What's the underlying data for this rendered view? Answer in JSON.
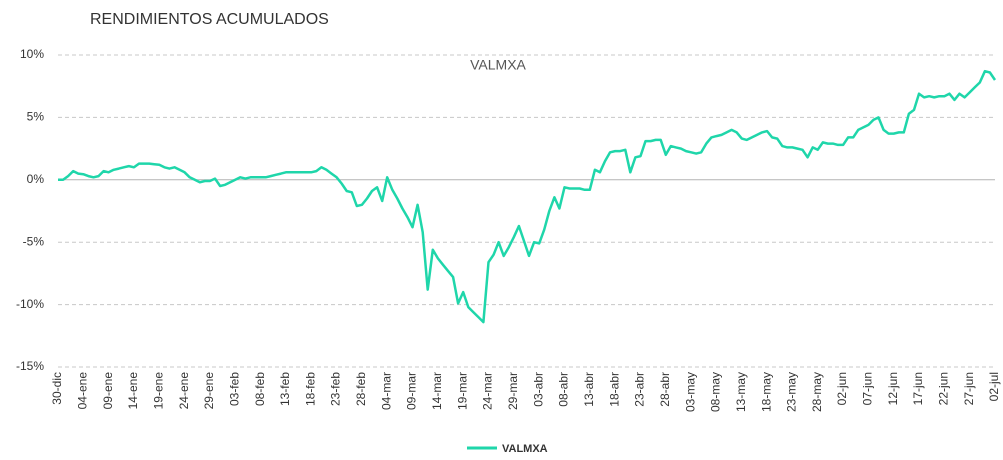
{
  "chart_data": {
    "type": "line",
    "title": "RENDIMIENTOS ACUMULADOS",
    "annotation": "VALMXA",
    "categories": [
      "30-dic",
      null,
      null,
      null,
      null,
      "04-ene",
      null,
      null,
      null,
      null,
      "09-ene",
      null,
      null,
      null,
      null,
      "14-ene",
      null,
      null,
      null,
      null,
      "19-ene",
      null,
      null,
      null,
      null,
      "24-ene",
      null,
      null,
      null,
      null,
      "29-ene",
      null,
      null,
      null,
      null,
      "03-feb",
      null,
      null,
      null,
      null,
      "08-feb",
      null,
      null,
      null,
      null,
      "13-feb",
      null,
      null,
      null,
      null,
      "18-feb",
      null,
      null,
      null,
      null,
      "23-feb",
      null,
      null,
      null,
      null,
      "28-feb",
      null,
      null,
      null,
      null,
      "04-mar",
      null,
      null,
      null,
      null,
      "09-mar",
      null,
      null,
      null,
      null,
      "14-mar",
      null,
      null,
      null,
      null,
      "19-mar",
      null,
      null,
      null,
      null,
      "24-mar",
      null,
      null,
      null,
      null,
      "29-mar",
      null,
      null,
      null,
      null,
      "03-abr",
      null,
      null,
      null,
      null,
      "08-abr",
      null,
      null,
      null,
      null,
      "13-abr",
      null,
      null,
      null,
      null,
      "18-abr",
      null,
      null,
      null,
      null,
      "23-abr",
      null,
      null,
      null,
      null,
      "28-abr",
      null,
      null,
      null,
      null,
      "03-may",
      null,
      null,
      null,
      null,
      "08-may",
      null,
      null,
      null,
      null,
      "13-may",
      null,
      null,
      null,
      null,
      "18-may",
      null,
      null,
      null,
      null,
      "23-may",
      null,
      null,
      null,
      null,
      "28-may",
      null,
      null,
      null,
      null,
      "02-jun",
      null,
      null,
      null,
      null,
      "07-jun",
      null,
      null,
      null,
      null,
      "12-jun",
      null,
      null,
      null,
      null,
      "17-jun",
      null,
      null,
      null,
      null,
      "22-jun",
      null,
      null,
      null,
      null,
      "27-jun",
      null,
      null,
      null,
      null,
      "02-jul"
    ],
    "series": [
      {
        "name": "VALMXA",
        "color": "#1fd6aa",
        "values": [
          0,
          0,
          0.3,
          0.7,
          0.5,
          0.45,
          0.3,
          0.2,
          0.3,
          0.7,
          0.6,
          0.8,
          0.9,
          1.0,
          1.1,
          1.0,
          1.3,
          1.3,
          1.3,
          1.25,
          1.2,
          1.0,
          0.9,
          1.0,
          0.8,
          0.6,
          0.2,
          0.0,
          -0.2,
          -0.1,
          -0.1,
          0.1,
          -0.5,
          -0.4,
          -0.2,
          0.0,
          0.2,
          0.1,
          0.2,
          0.2,
          0.2,
          0.2,
          0.3,
          0.4,
          0.5,
          0.6,
          0.6,
          0.6,
          0.6,
          0.6,
          0.6,
          0.7,
          1.0,
          0.8,
          0.5,
          0.2,
          -0.3,
          -0.9,
          -1.0,
          -2.1,
          -2.0,
          -1.5,
          -0.9,
          -0.6,
          -1.7,
          0.2,
          -0.8,
          -1.5,
          -2.3,
          -3.0,
          -3.8,
          -2.0,
          -4.2,
          -8.8,
          -5.6,
          -6.3,
          -6.8,
          -7.3,
          -7.8,
          -9.9,
          -9.0,
          -10.2,
          -10.6,
          -11.0,
          -11.4,
          -6.6,
          -6.0,
          -5.0,
          -6.1,
          -5.4,
          -4.6,
          -3.7,
          -4.9,
          -6.1,
          -5.0,
          -5.1,
          -4.0,
          -2.5,
          -1.4,
          -2.3,
          -0.6,
          -0.7,
          -0.7,
          -0.7,
          -0.8,
          -0.8,
          0.8,
          0.6,
          1.5,
          2.2,
          2.3,
          2.3,
          2.4,
          0.6,
          1.8,
          1.9,
          3.1,
          3.1,
          3.2,
          3.2,
          2.0,
          2.7,
          2.6,
          2.5,
          2.3,
          2.2,
          2.1,
          2.2,
          2.9,
          3.4,
          3.5,
          3.6,
          3.8,
          4.0,
          3.8,
          3.3,
          3.2,
          3.4,
          3.6,
          3.8,
          3.9,
          3.4,
          3.3,
          2.7,
          2.6,
          2.6,
          2.5,
          2.4,
          1.8,
          2.6,
          2.4,
          3.0,
          2.9,
          2.9,
          2.8,
          2.8,
          3.4,
          3.4,
          4.0,
          4.2,
          4.4,
          4.8,
          5.0,
          4.0,
          3.7,
          3.7,
          3.8,
          3.8,
          5.3,
          5.6,
          6.9,
          6.6,
          6.7,
          6.6,
          6.7,
          6.7,
          6.9,
          6.4,
          6.9,
          6.6,
          7.0,
          7.4,
          7.8,
          8.7,
          8.6,
          8.0
        ]
      }
    ],
    "ylim": [
      -15,
      10
    ],
    "yticks": [
      {
        "value": -15,
        "label": "-15%"
      },
      {
        "value": -10,
        "label": "-10%"
      },
      {
        "value": -5,
        "label": "-5%"
      },
      {
        "value": 0,
        "label": "0%"
      },
      {
        "value": 5,
        "label": "5%"
      },
      {
        "value": 10,
        "label": "10%"
      }
    ],
    "grid": true,
    "legend": "bottom"
  }
}
